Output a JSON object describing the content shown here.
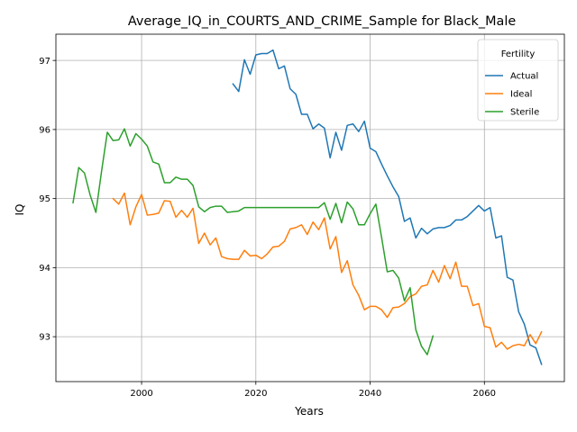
{
  "chart_data": {
    "type": "line",
    "title": "Average_IQ_in_COURTS_AND_CRIME_Sample for Black_Male",
    "xlabel": "Years",
    "ylabel": "IQ",
    "xlim": [
      1985,
      2074
    ],
    "ylim": [
      92.35,
      97.38
    ],
    "xticks": [
      2000,
      2020,
      2040,
      2060
    ],
    "yticks": [
      93,
      94,
      95,
      96,
      97
    ],
    "grid": true,
    "legend": {
      "title": "Fertility",
      "placement": "top-right"
    },
    "series": [
      {
        "name": "Actual",
        "color": "#1f77b4",
        "points": [
          [
            2016,
            96.66
          ],
          [
            2017,
            96.55
          ],
          [
            2018,
            97.01
          ],
          [
            2019,
            96.8
          ],
          [
            2020,
            97.08
          ],
          [
            2021,
            97.1
          ],
          [
            2022,
            97.1
          ],
          [
            2023,
            97.15
          ],
          [
            2024,
            96.88
          ],
          [
            2025,
            96.92
          ],
          [
            2026,
            96.59
          ],
          [
            2027,
            96.51
          ],
          [
            2028,
            96.22
          ],
          [
            2029,
            96.22
          ],
          [
            2030,
            96.01
          ],
          [
            2031,
            96.08
          ],
          [
            2032,
            96.02
          ],
          [
            2033,
            95.59
          ],
          [
            2034,
            95.96
          ],
          [
            2035,
            95.7
          ],
          [
            2036,
            96.06
          ],
          [
            2037,
            96.08
          ],
          [
            2038,
            95.97
          ],
          [
            2039,
            96.12
          ],
          [
            2040,
            95.73
          ],
          [
            2041,
            95.68
          ],
          [
            2042,
            95.5
          ],
          [
            2043,
            95.33
          ],
          [
            2044,
            95.17
          ],
          [
            2045,
            95.03
          ],
          [
            2046,
            94.67
          ],
          [
            2047,
            94.72
          ],
          [
            2048,
            94.43
          ],
          [
            2049,
            94.57
          ],
          [
            2050,
            94.49
          ],
          [
            2051,
            94.56
          ],
          [
            2052,
            94.58
          ],
          [
            2053,
            94.58
          ],
          [
            2054,
            94.61
          ],
          [
            2055,
            94.69
          ],
          [
            2056,
            94.69
          ],
          [
            2057,
            94.74
          ],
          [
            2058,
            94.82
          ],
          [
            2059,
            94.9
          ],
          [
            2060,
            94.82
          ],
          [
            2061,
            94.87
          ],
          [
            2062,
            94.43
          ],
          [
            2063,
            94.46
          ],
          [
            2064,
            93.86
          ],
          [
            2065,
            93.82
          ],
          [
            2066,
            93.36
          ],
          [
            2067,
            93.18
          ],
          [
            2068,
            92.88
          ],
          [
            2069,
            92.84
          ],
          [
            2070,
            92.6
          ]
        ]
      },
      {
        "name": "Ideal",
        "color": "#ff7f0e",
        "points": [
          [
            1995,
            95.0
          ],
          [
            1996,
            94.92
          ],
          [
            1997,
            95.08
          ],
          [
            1998,
            94.62
          ],
          [
            1999,
            94.88
          ],
          [
            2000,
            95.06
          ],
          [
            2001,
            94.76
          ],
          [
            2002,
            94.77
          ],
          [
            2003,
            94.79
          ],
          [
            2004,
            94.97
          ],
          [
            2005,
            94.96
          ],
          [
            2006,
            94.73
          ],
          [
            2007,
            94.83
          ],
          [
            2008,
            94.73
          ],
          [
            2009,
            94.86
          ],
          [
            2010,
            94.35
          ],
          [
            2011,
            94.5
          ],
          [
            2012,
            94.33
          ],
          [
            2013,
            94.43
          ],
          [
            2014,
            94.16
          ],
          [
            2015,
            94.13
          ],
          [
            2016,
            94.12
          ],
          [
            2017,
            94.12
          ],
          [
            2018,
            94.25
          ],
          [
            2019,
            94.17
          ],
          [
            2020,
            94.18
          ],
          [
            2021,
            94.13
          ],
          [
            2022,
            94.2
          ],
          [
            2023,
            94.3
          ],
          [
            2024,
            94.31
          ],
          [
            2025,
            94.38
          ],
          [
            2026,
            94.56
          ],
          [
            2027,
            94.58
          ],
          [
            2028,
            94.62
          ],
          [
            2029,
            94.48
          ],
          [
            2030,
            94.66
          ],
          [
            2031,
            94.55
          ],
          [
            2032,
            94.72
          ],
          [
            2033,
            94.27
          ],
          [
            2034,
            94.45
          ],
          [
            2035,
            93.93
          ],
          [
            2036,
            94.1
          ],
          [
            2037,
            93.75
          ],
          [
            2038,
            93.6
          ],
          [
            2039,
            93.39
          ],
          [
            2040,
            93.44
          ],
          [
            2041,
            93.44
          ],
          [
            2042,
            93.39
          ],
          [
            2043,
            93.28
          ],
          [
            2044,
            93.42
          ],
          [
            2045,
            93.43
          ],
          [
            2046,
            93.48
          ],
          [
            2047,
            93.58
          ],
          [
            2048,
            93.62
          ],
          [
            2049,
            93.73
          ],
          [
            2050,
            93.75
          ],
          [
            2051,
            93.96
          ],
          [
            2052,
            93.79
          ],
          [
            2053,
            94.03
          ],
          [
            2054,
            93.84
          ],
          [
            2055,
            94.08
          ],
          [
            2056,
            93.73
          ],
          [
            2057,
            93.73
          ],
          [
            2058,
            93.45
          ],
          [
            2059,
            93.48
          ],
          [
            2060,
            93.15
          ],
          [
            2061,
            93.13
          ],
          [
            2062,
            92.85
          ],
          [
            2063,
            92.92
          ],
          [
            2064,
            92.82
          ],
          [
            2065,
            92.87
          ],
          [
            2066,
            92.89
          ],
          [
            2067,
            92.87
          ],
          [
            2068,
            93.03
          ],
          [
            2069,
            92.9
          ],
          [
            2070,
            93.07
          ]
        ]
      },
      {
        "name": "Sterile",
        "color": "#2ca02c",
        "points": [
          [
            1988,
            94.94
          ],
          [
            1989,
            95.45
          ],
          [
            1990,
            95.37
          ],
          [
            1991,
            95.05
          ],
          [
            1992,
            94.8
          ],
          [
            1993,
            95.4
          ],
          [
            1994,
            95.96
          ],
          [
            1995,
            95.84
          ],
          [
            1996,
            95.85
          ],
          [
            1997,
            96.01
          ],
          [
            1998,
            95.76
          ],
          [
            1999,
            95.94
          ],
          [
            2000,
            95.86
          ],
          [
            2001,
            95.76
          ],
          [
            2002,
            95.53
          ],
          [
            2003,
            95.5
          ],
          [
            2004,
            95.23
          ],
          [
            2005,
            95.23
          ],
          [
            2006,
            95.31
          ],
          [
            2007,
            95.28
          ],
          [
            2008,
            95.28
          ],
          [
            2009,
            95.19
          ],
          [
            2010,
            94.88
          ],
          [
            2011,
            94.81
          ],
          [
            2012,
            94.87
          ],
          [
            2013,
            94.89
          ],
          [
            2014,
            94.89
          ],
          [
            2015,
            94.8
          ],
          [
            2016,
            94.81
          ],
          [
            2017,
            94.82
          ],
          [
            2018,
            94.87
          ],
          [
            2019,
            94.87
          ],
          [
            2020,
            94.87
          ],
          [
            2021,
            94.87
          ],
          [
            2022,
            94.87
          ],
          [
            2023,
            94.87
          ],
          [
            2024,
            94.87
          ],
          [
            2025,
            94.87
          ],
          [
            2026,
            94.87
          ],
          [
            2027,
            94.87
          ],
          [
            2028,
            94.87
          ],
          [
            2029,
            94.87
          ],
          [
            2030,
            94.87
          ],
          [
            2031,
            94.87
          ],
          [
            2032,
            94.94
          ],
          [
            2033,
            94.7
          ],
          [
            2034,
            94.93
          ],
          [
            2035,
            94.65
          ],
          [
            2036,
            94.95
          ],
          [
            2037,
            94.85
          ],
          [
            2038,
            94.62
          ],
          [
            2039,
            94.62
          ],
          [
            2040,
            94.78
          ],
          [
            2041,
            94.92
          ],
          [
            2042,
            94.44
          ],
          [
            2043,
            93.94
          ],
          [
            2044,
            93.96
          ],
          [
            2045,
            93.85
          ],
          [
            2046,
            93.52
          ],
          [
            2047,
            93.71
          ],
          [
            2048,
            93.1
          ],
          [
            2049,
            92.86
          ],
          [
            2050,
            92.74
          ],
          [
            2051,
            93.01
          ]
        ]
      }
    ]
  }
}
